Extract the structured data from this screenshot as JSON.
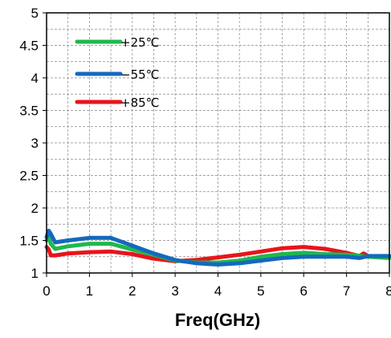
{
  "chart_data": {
    "type": "line",
    "title": "",
    "xlabel": "Freq(GHz)",
    "ylabel": "",
    "xlim": [
      0,
      8
    ],
    "ylim": [
      1,
      5
    ],
    "xticks": [
      "0",
      "1",
      "2",
      "3",
      "4",
      "5",
      "6",
      "7",
      "8"
    ],
    "yticks": [
      "1",
      "1.5",
      "2",
      "2.5",
      "3",
      "3.5",
      "4",
      "4.5",
      "5"
    ],
    "grid": true,
    "legend_position": "top-left",
    "series": [
      {
        "name": "+25℃",
        "color": "#1fb84c",
        "x": [
          0,
          0.05,
          0.1,
          0.2,
          0.5,
          1.0,
          1.5,
          2.0,
          2.5,
          3.0,
          3.5,
          4.0,
          4.5,
          5.0,
          5.5,
          6.0,
          6.5,
          7.0,
          7.5,
          8.0
        ],
        "y": [
          1.5,
          1.55,
          1.45,
          1.37,
          1.41,
          1.45,
          1.45,
          1.36,
          1.28,
          1.19,
          1.16,
          1.16,
          1.19,
          1.25,
          1.29,
          1.31,
          1.29,
          1.28,
          1.25,
          1.23
        ]
      },
      {
        "name": "−55℃",
        "color": "#1469bd",
        "x": [
          0,
          0.05,
          0.1,
          0.2,
          0.5,
          1.0,
          1.5,
          2.0,
          2.5,
          3.0,
          3.5,
          4.0,
          4.5,
          5.0,
          5.5,
          6.0,
          6.5,
          7.0,
          7.3,
          7.5,
          8.0
        ],
        "y": [
          1.55,
          1.65,
          1.6,
          1.47,
          1.5,
          1.54,
          1.54,
          1.42,
          1.3,
          1.2,
          1.15,
          1.13,
          1.15,
          1.19,
          1.23,
          1.25,
          1.25,
          1.25,
          1.23,
          1.26,
          1.26
        ]
      },
      {
        "name": "+85℃",
        "color": "#e8141c",
        "x": [
          0,
          0.05,
          0.1,
          0.2,
          0.5,
          1.0,
          1.5,
          2.0,
          2.5,
          3.0,
          3.5,
          4.0,
          4.5,
          5.0,
          5.5,
          6.0,
          6.5,
          7.0,
          7.3,
          7.4,
          7.5,
          8.0
        ],
        "y": [
          1.4,
          1.36,
          1.27,
          1.27,
          1.3,
          1.32,
          1.33,
          1.29,
          1.22,
          1.18,
          1.2,
          1.24,
          1.28,
          1.33,
          1.38,
          1.4,
          1.37,
          1.31,
          1.26,
          1.3,
          1.26,
          1.25
        ]
      }
    ]
  }
}
